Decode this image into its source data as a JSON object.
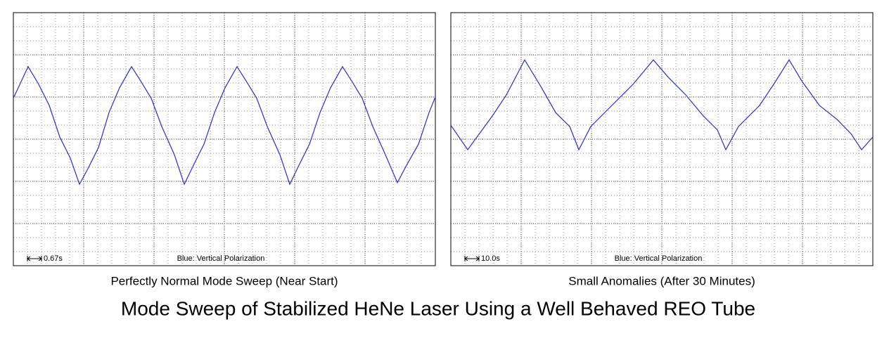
{
  "title": "Mode Sweep of Stabilized HeNe Laser Using a Well Behaved REO Tube",
  "chart_data": [
    {
      "type": "line",
      "title": "Perfectly Normal Mode Sweep (Near Start)",
      "scale_label": "0.67s",
      "annotation": "Blue: Vertical Polarization",
      "xlim": [
        0,
        6
      ],
      "ylim": [
        -3,
        3
      ],
      "xticks": [
        0,
        1,
        2,
        3,
        4,
        5,
        6
      ],
      "yticks": [
        -3,
        -2,
        -1,
        0,
        1,
        2,
        3
      ],
      "grid": true,
      "x": [
        0,
        0.21,
        0.36,
        0.51,
        0.66,
        0.81,
        0.94,
        1.06,
        1.21,
        1.36,
        1.51,
        1.68,
        1.81,
        1.96,
        2.11,
        2.29,
        2.43,
        2.56,
        2.71,
        2.86,
        3.01,
        3.18,
        3.31,
        3.46,
        3.61,
        3.79,
        3.93,
        4.06,
        4.21,
        4.36,
        4.51,
        4.68,
        4.81,
        4.96,
        5.11,
        5.29,
        5.46,
        5.59,
        5.76,
        5.91,
        6.0
      ],
      "series": [
        {
          "color": "#2b2bd0",
          "values": [
            0.97,
            1.72,
            1.3,
            0.8,
            0.05,
            -0.45,
            -1.07,
            -0.7,
            -0.2,
            0.63,
            1.22,
            1.72,
            1.38,
            0.97,
            0.3,
            -0.37,
            -1.07,
            -0.62,
            -0.12,
            0.63,
            1.22,
            1.72,
            1.38,
            0.97,
            0.3,
            -0.37,
            -1.07,
            -0.62,
            -0.12,
            0.63,
            1.22,
            1.72,
            1.38,
            0.97,
            0.3,
            -0.37,
            -1.03,
            -0.62,
            -0.12,
            0.63,
            1.0
          ]
        }
      ]
    },
    {
      "type": "line",
      "title": "Small Anomalies (After 30 Minutes)",
      "scale_label": "10.0s",
      "annotation": "Blue: Vertical Polarization",
      "xlim": [
        0,
        6
      ],
      "ylim": [
        -3,
        3
      ],
      "xticks": [
        0,
        1,
        2,
        3,
        4,
        5,
        6
      ],
      "yticks": [
        -3,
        -2,
        -1,
        0,
        1,
        2,
        3
      ],
      "grid": true,
      "x": [
        0,
        0.24,
        0.59,
        0.79,
        1.05,
        1.29,
        1.49,
        1.69,
        1.82,
        1.99,
        2.29,
        2.59,
        2.88,
        3.09,
        3.34,
        3.59,
        3.79,
        3.91,
        4.09,
        4.39,
        4.59,
        4.81,
        4.99,
        5.24,
        5.49,
        5.69,
        5.84,
        6.0
      ],
      "series": [
        {
          "color": "#2b2bd0",
          "values": [
            0.33,
            -0.25,
            0.55,
            1.05,
            1.88,
            1.22,
            0.63,
            0.3,
            -0.25,
            0.3,
            0.8,
            1.3,
            1.88,
            1.47,
            1.05,
            0.55,
            0.22,
            -0.25,
            0.3,
            0.8,
            1.3,
            1.88,
            1.38,
            0.8,
            0.47,
            0.13,
            -0.25,
            0.05
          ]
        }
      ]
    }
  ]
}
